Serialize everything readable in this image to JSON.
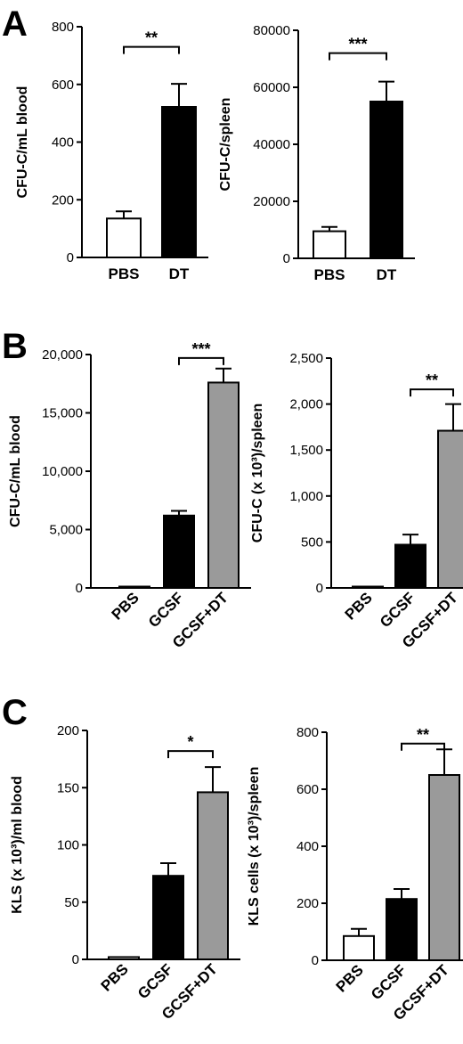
{
  "panels": [
    "A",
    "B",
    "C"
  ],
  "chart_data": [
    {
      "type": "bar",
      "panel": "A",
      "categories": [
        "PBS",
        "DT"
      ],
      "values": [
        135,
        522
      ],
      "errors": [
        25,
        80
      ],
      "colors": [
        "#ffffff",
        "#000000"
      ],
      "ylabel": "CFU-C/mL blood",
      "ylim": [
        0,
        800
      ],
      "yticks": [
        0,
        200,
        400,
        600,
        800
      ],
      "ytick_labels": [
        "0",
        "200",
        "400",
        "600",
        "800"
      ],
      "rotated_categories": false,
      "significance": [
        {
          "from": 0,
          "to": 1,
          "label": "**",
          "y": 730
        }
      ]
    },
    {
      "type": "bar",
      "panel": "A",
      "categories": [
        "PBS",
        "DT"
      ],
      "values": [
        9500,
        55000
      ],
      "errors": [
        1500,
        7000
      ],
      "colors": [
        "#ffffff",
        "#000000"
      ],
      "ylabel": "CFU-C/spleen",
      "ylim": [
        0,
        80000
      ],
      "yticks": [
        0,
        20000,
        40000,
        60000,
        80000
      ],
      "ytick_labels": [
        "0",
        "20000",
        "40000",
        "60000",
        "80000"
      ],
      "rotated_categories": false,
      "significance": [
        {
          "from": 0,
          "to": 1,
          "label": "***",
          "y": 72000
        }
      ]
    },
    {
      "type": "bar",
      "panel": "B",
      "categories": [
        "PBS",
        "GCSF",
        "GCSF+DT"
      ],
      "values": [
        80,
        6200,
        17600
      ],
      "errors": [
        0,
        400,
        1200
      ],
      "colors": [
        "#ffffff",
        "#000000",
        "#9a9a9a"
      ],
      "ylabel": "CFU-C/mL blood",
      "ylim": [
        0,
        20000
      ],
      "yticks": [
        0,
        5000,
        10000,
        15000,
        20000
      ],
      "ytick_labels": [
        "0",
        "5,000",
        "10,000",
        "15,000",
        "20,000"
      ],
      "rotated_categories": true,
      "significance": [
        {
          "from": 1,
          "to": 2,
          "label": "***",
          "y": 19700
        }
      ]
    },
    {
      "type": "bar",
      "panel": "B",
      "categories": [
        "PBS",
        "GCSF",
        "GCSF+DT"
      ],
      "values": [
        5,
        470,
        1710
      ],
      "errors": [
        0,
        110,
        290
      ],
      "colors": [
        "#ffffff",
        "#000000",
        "#9a9a9a"
      ],
      "ylabel": "CFU-C (x 10³)/spleen",
      "ylim": [
        0,
        2500
      ],
      "yticks": [
        0,
        500,
        1000,
        1500,
        2000,
        2500
      ],
      "ytick_labels": [
        "0",
        "500",
        "1,000",
        "1,500",
        "2,000",
        "2,500"
      ],
      "rotated_categories": true,
      "significance": [
        {
          "from": 1,
          "to": 2,
          "label": "**",
          "y": 2160
        }
      ]
    },
    {
      "type": "bar",
      "panel": "C",
      "categories": [
        "PBS",
        "GCSF",
        "GCSF+DT"
      ],
      "values": [
        2,
        73,
        146
      ],
      "errors": [
        0,
        11,
        22
      ],
      "colors": [
        "#ffffff",
        "#000000",
        "#9a9a9a"
      ],
      "ylabel": "KLS (x 10³)/ml blood",
      "ylim": [
        0,
        200
      ],
      "yticks": [
        0,
        50,
        100,
        150,
        200
      ],
      "ytick_labels": [
        "0",
        "50",
        "100",
        "150",
        "200"
      ],
      "rotated_categories": true,
      "significance": [
        {
          "from": 1,
          "to": 2,
          "label": "*",
          "y": 182
        }
      ]
    },
    {
      "type": "bar",
      "panel": "C",
      "categories": [
        "PBS",
        "GCSF",
        "GCSF+DT"
      ],
      "values": [
        85,
        215,
        650
      ],
      "errors": [
        25,
        35,
        90
      ],
      "colors": [
        "#ffffff",
        "#000000",
        "#9a9a9a"
      ],
      "ylabel": "KLS cells (x 10³)/spleen",
      "ylim": [
        0,
        800
      ],
      "yticks": [
        0,
        200,
        400,
        600,
        800
      ],
      "ytick_labels": [
        "0",
        "200",
        "400",
        "600",
        "800"
      ],
      "rotated_categories": true,
      "significance": [
        {
          "from": 1,
          "to": 2,
          "label": "**",
          "y": 760
        }
      ]
    }
  ]
}
